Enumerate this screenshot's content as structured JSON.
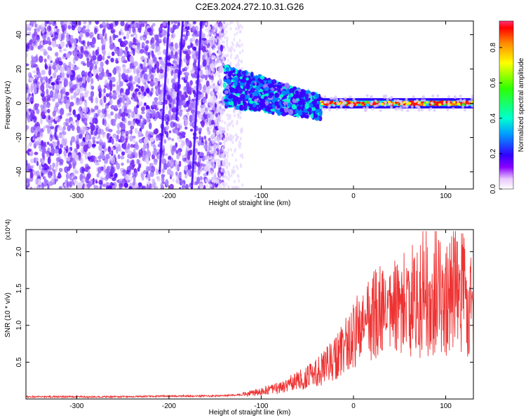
{
  "title": "C2E3.2024.272.10.31.G26",
  "chart_data": [
    {
      "type": "heatmap",
      "xlabel": "Height of straight line (km)",
      "ylabel": "Frequency (Hz)",
      "xlim": [
        -355,
        130
      ],
      "ylim": [
        -50,
        48
      ],
      "x_ticks": [
        -300,
        -200,
        -100,
        0,
        100
      ],
      "y_ticks": [
        -40,
        -20,
        0,
        20,
        40
      ],
      "colorbar": {
        "label": "Normalized spectral amplitude",
        "range": [
          0,
          0.95
        ],
        "ticks": [
          0.0,
          0.2,
          0.4,
          0.6,
          0.8
        ]
      },
      "regions": [
        {
          "x_from": -355,
          "x_to": -140,
          "description_level": 0.15
        },
        {
          "x_from": -140,
          "x_to": -35,
          "description_level": 0.4
        },
        {
          "x_from": -35,
          "x_to": 130,
          "description_level": 0.85
        }
      ],
      "colors": {
        "low": "#b08cff",
        "mid": "#00ffcc",
        "high": "#ff0000"
      }
    },
    {
      "type": "line",
      "xlabel": "Height of straight line (km)",
      "ylabel": "SNR (10 * v/v)",
      "y_multiplier": "(x10^4)",
      "xlim": [
        -355,
        130
      ],
      "ylim": [
        0,
        2.3
      ],
      "x_ticks": [
        -300,
        -200,
        -100,
        0,
        100
      ],
      "y_ticks": [
        0.5,
        1.0,
        1.5,
        2.0
      ],
      "line_color": "#ee3333",
      "series": [
        {
          "x": [
            -355,
            -300,
            -250,
            -200,
            -150,
            -120,
            -100,
            -80,
            -60,
            -40,
            -30,
            -20,
            -10,
            0,
            10,
            20,
            30,
            40,
            50,
            60,
            70,
            80,
            90,
            100,
            110,
            120,
            130
          ],
          "y": [
            0.03,
            0.03,
            0.03,
            0.04,
            0.04,
            0.06,
            0.1,
            0.15,
            0.25,
            0.35,
            0.45,
            0.55,
            0.7,
            0.85,
            1.0,
            1.1,
            1.2,
            1.15,
            1.3,
            1.2,
            1.4,
            1.3,
            1.5,
            1.3,
            1.6,
            1.4,
            1.1
          ]
        }
      ]
    }
  ]
}
